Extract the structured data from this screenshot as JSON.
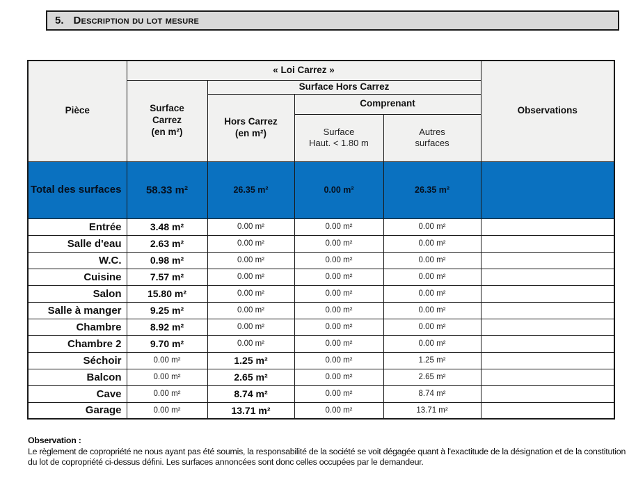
{
  "section": {
    "number": "5.",
    "title": "Description du lot mesure"
  },
  "table": {
    "headers": {
      "piece": "Pièce",
      "loi_carrez": "« Loi Carrez »",
      "surface_hors_carrez": "Surface Hors Carrez",
      "comprenant": "Comprenant",
      "surface_carrez": "Surface\nCarrez\n(en m²)",
      "hors_carrez": "Hors Carrez\n(en m²)",
      "surface_haut": "Surface\nHaut. < 1.80 m",
      "autres_surfaces": "Autres\nsurfaces",
      "observations": "Observations"
    },
    "total_row": {
      "label": "Total des surfaces",
      "surface_carrez": "58.33 m²",
      "hors_carrez": "26.35 m²",
      "surface_haut": "0.00 m²",
      "autres_surfaces": "26.35 m²",
      "observations": ""
    },
    "rows": [
      {
        "piece": "Entrée",
        "cells": [
          {
            "text": "3.48 m²",
            "bold": true
          },
          {
            "text": "0.00 m²",
            "bold": false
          },
          {
            "text": "0.00 m²",
            "bold": false
          },
          {
            "text": "0.00 m²",
            "bold": false
          }
        ],
        "observations": ""
      },
      {
        "piece": "Salle d'eau",
        "cells": [
          {
            "text": "2.63 m²",
            "bold": true
          },
          {
            "text": "0.00 m²",
            "bold": false
          },
          {
            "text": "0.00 m²",
            "bold": false
          },
          {
            "text": "0.00 m²",
            "bold": false
          }
        ],
        "observations": ""
      },
      {
        "piece": "W.C.",
        "cells": [
          {
            "text": "0.98 m²",
            "bold": true
          },
          {
            "text": "0.00 m²",
            "bold": false
          },
          {
            "text": "0.00 m²",
            "bold": false
          },
          {
            "text": "0.00 m²",
            "bold": false
          }
        ],
        "observations": ""
      },
      {
        "piece": "Cuisine",
        "cells": [
          {
            "text": "7.57 m²",
            "bold": true
          },
          {
            "text": "0.00 m²",
            "bold": false
          },
          {
            "text": "0.00 m²",
            "bold": false
          },
          {
            "text": "0.00 m²",
            "bold": false
          }
        ],
        "observations": ""
      },
      {
        "piece": "Salon",
        "cells": [
          {
            "text": "15.80 m²",
            "bold": true
          },
          {
            "text": "0.00 m²",
            "bold": false
          },
          {
            "text": "0.00 m²",
            "bold": false
          },
          {
            "text": "0.00 m²",
            "bold": false
          }
        ],
        "observations": ""
      },
      {
        "piece": "Salle à manger",
        "cells": [
          {
            "text": "9.25 m²",
            "bold": true
          },
          {
            "text": "0.00 m²",
            "bold": false
          },
          {
            "text": "0.00 m²",
            "bold": false
          },
          {
            "text": "0.00 m²",
            "bold": false
          }
        ],
        "observations": ""
      },
      {
        "piece": "Chambre",
        "cells": [
          {
            "text": "8.92 m²",
            "bold": true
          },
          {
            "text": "0.00 m²",
            "bold": false
          },
          {
            "text": "0.00 m²",
            "bold": false
          },
          {
            "text": "0.00 m²",
            "bold": false
          }
        ],
        "observations": ""
      },
      {
        "piece": "Chambre 2",
        "cells": [
          {
            "text": "9.70 m²",
            "bold": true
          },
          {
            "text": "0.00 m²",
            "bold": false
          },
          {
            "text": "0.00 m²",
            "bold": false
          },
          {
            "text": "0.00 m²",
            "bold": false
          }
        ],
        "observations": ""
      },
      {
        "piece": "Séchoir",
        "cells": [
          {
            "text": "0.00 m²",
            "bold": false
          },
          {
            "text": "1.25 m²",
            "bold": true
          },
          {
            "text": "0.00 m²",
            "bold": false
          },
          {
            "text": "1.25 m²",
            "bold": false
          }
        ],
        "observations": ""
      },
      {
        "piece": "Balcon",
        "cells": [
          {
            "text": "0.00 m²",
            "bold": false
          },
          {
            "text": "2.65 m²",
            "bold": true
          },
          {
            "text": "0.00 m²",
            "bold": false
          },
          {
            "text": "2.65 m²",
            "bold": false
          }
        ],
        "observations": ""
      },
      {
        "piece": "Cave",
        "cells": [
          {
            "text": "0.00 m²",
            "bold": false
          },
          {
            "text": "8.74 m²",
            "bold": true
          },
          {
            "text": "0.00 m²",
            "bold": false
          },
          {
            "text": "8.74 m²",
            "bold": false
          }
        ],
        "observations": ""
      },
      {
        "piece": "Garage",
        "cells": [
          {
            "text": "0.00 m²",
            "bold": false
          },
          {
            "text": "13.71 m²",
            "bold": true
          },
          {
            "text": "0.00 m²",
            "bold": false
          },
          {
            "text": "13.71 m²",
            "bold": false
          }
        ],
        "observations": ""
      }
    ]
  },
  "footer": {
    "label": "Observation :",
    "text": "Le règlement de copropriété ne nous ayant pas été soumis, la responsabilité de la société se voit dégagée quant à l'exactitude de la désignation et de la constitution du lot de copropriété ci-dessus défini. Les surfaces annoncées sont donc celles occupées par le demandeur."
  },
  "colors": {
    "total_row_blue": "#0a71c0",
    "header_gray": "#f1f1f0",
    "section_bar_gray": "#d9d9d9",
    "border_black": "#1a1a1a"
  }
}
